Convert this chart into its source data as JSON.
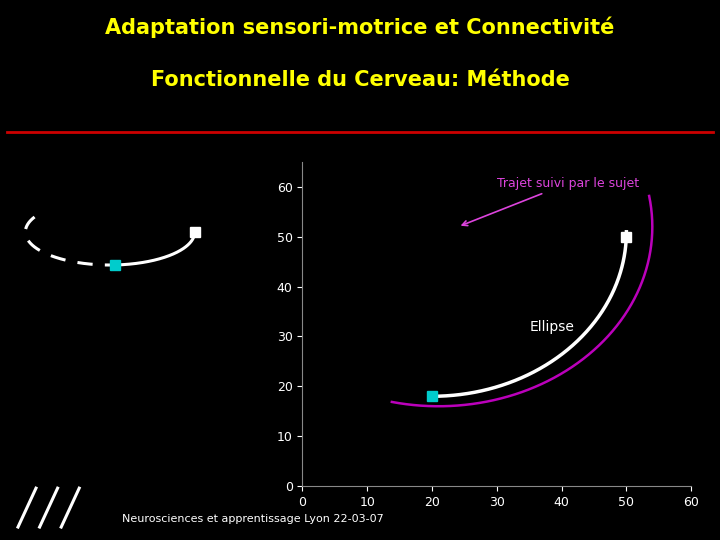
{
  "title_line1": "Adaptation sensori-motrice et Connectivité",
  "title_line2": "Fonctionnelle du Cerveau: Méthode",
  "title_color": "#ffff00",
  "title_fontsize": 15,
  "bg_color": "#000000",
  "red_line_color": "#cc0000",
  "footer_text": "Neurosciences et apprentissage Lyon 22-03-07",
  "footer_color": "#ffffff",
  "footer_fontsize": 8,
  "plot_xlim": [
    0,
    60
  ],
  "plot_ylim": [
    0,
    65
  ],
  "plot_xticks": [
    0,
    10,
    20,
    30,
    40,
    50,
    60
  ],
  "plot_yticks": [
    0,
    10,
    20,
    30,
    40,
    50,
    60
  ],
  "axis_color": "#888888",
  "tick_color": "#ffffff",
  "label_trajet": "Trajet suivi par le sujet",
  "label_trajet_color": "#dd44dd",
  "label_ellipse": "Ellipse",
  "label_ellipse_color": "#ffffff"
}
